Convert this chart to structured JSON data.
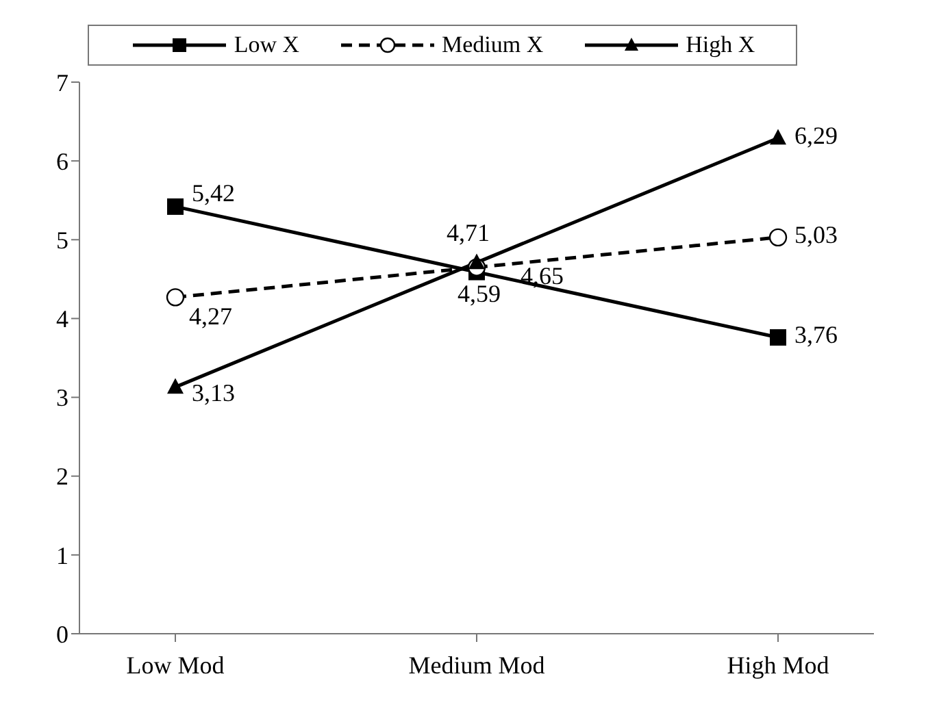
{
  "chart_data": {
    "type": "line",
    "categories": [
      "Low Mod",
      "Medium Mod",
      "High Mod"
    ],
    "series": [
      {
        "name": "Low X",
        "color": "#000000",
        "values": [
          5.42,
          4.59,
          3.76
        ],
        "value_labels": [
          "5,42",
          "4,59",
          "3,76"
        ],
        "marker": "square",
        "line_style": "solid"
      },
      {
        "name": "Medium X",
        "color": "#000000",
        "values": [
          4.27,
          4.65,
          5.03
        ],
        "value_labels": [
          "4,27",
          "4,65",
          "5,03"
        ],
        "marker": "circle",
        "line_style": "dashed"
      },
      {
        "name": "High X",
        "color": "#000000",
        "values": [
          3.13,
          4.71,
          6.29
        ],
        "value_labels": [
          "3,13",
          "4,71",
          "6,29"
        ],
        "marker": "triangle",
        "line_style": "solid"
      }
    ],
    "ylim": [
      0,
      7
    ],
    "yticks": [
      0,
      1,
      2,
      3,
      4,
      5,
      6,
      7
    ],
    "grid": false,
    "legend": "top"
  }
}
